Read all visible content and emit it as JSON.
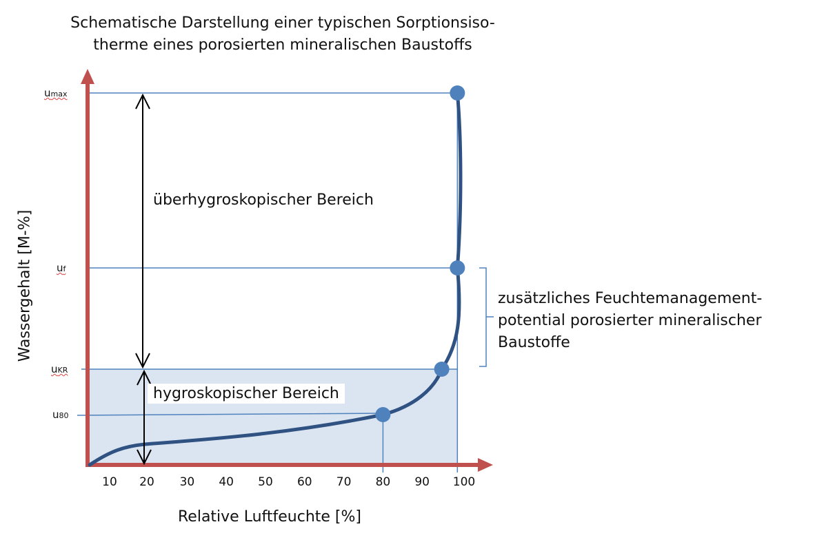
{
  "chart_data": {
    "type": "line",
    "title": "Schematische Darstellung einer typischen Sorptionsiso-therme eines porosierten mineralischen Baustoffs",
    "title_lines": [
      "Schematische Darstellung einer typischen Sorptionsiso-",
      "therme eines porosierten mineralischen Baustoffs"
    ],
    "xlabel": "Relative Luftfeuchte [%]",
    "ylabel": "Wassergehalt [M-%]",
    "x_ticks": [
      "10",
      "20",
      "30",
      "40",
      "50",
      "60",
      "70",
      "80",
      "90",
      "100"
    ],
    "y_levels": [
      {
        "base": "u",
        "sub": "max"
      },
      {
        "base": "u",
        "sub": "f"
      },
      {
        "base": "u",
        "sub": "KR"
      },
      {
        "base": "u",
        "sub": "80"
      }
    ],
    "marked_points": [
      {
        "level": "u80",
        "x": 80
      },
      {
        "level": "uKR",
        "x": 95
      },
      {
        "level": "uf",
        "x": 99
      },
      {
        "level": "umax",
        "x": 99
      }
    ],
    "grid": false,
    "annotations": {
      "upper_region": "überhygroskopischer Bereich",
      "lower_region": "hygroskopischer Bereich",
      "bracket_lines": [
        "zusätzliches Feuchtemanagement-",
        "potential porosierter mineralischer",
        "Baustoffe"
      ]
    },
    "colors": {
      "axis": "#c0504d",
      "curve": "#2f5283",
      "points": "#4f81bd",
      "guides": "#4f81bd",
      "hygro_fill": "#dbe5f1"
    }
  }
}
